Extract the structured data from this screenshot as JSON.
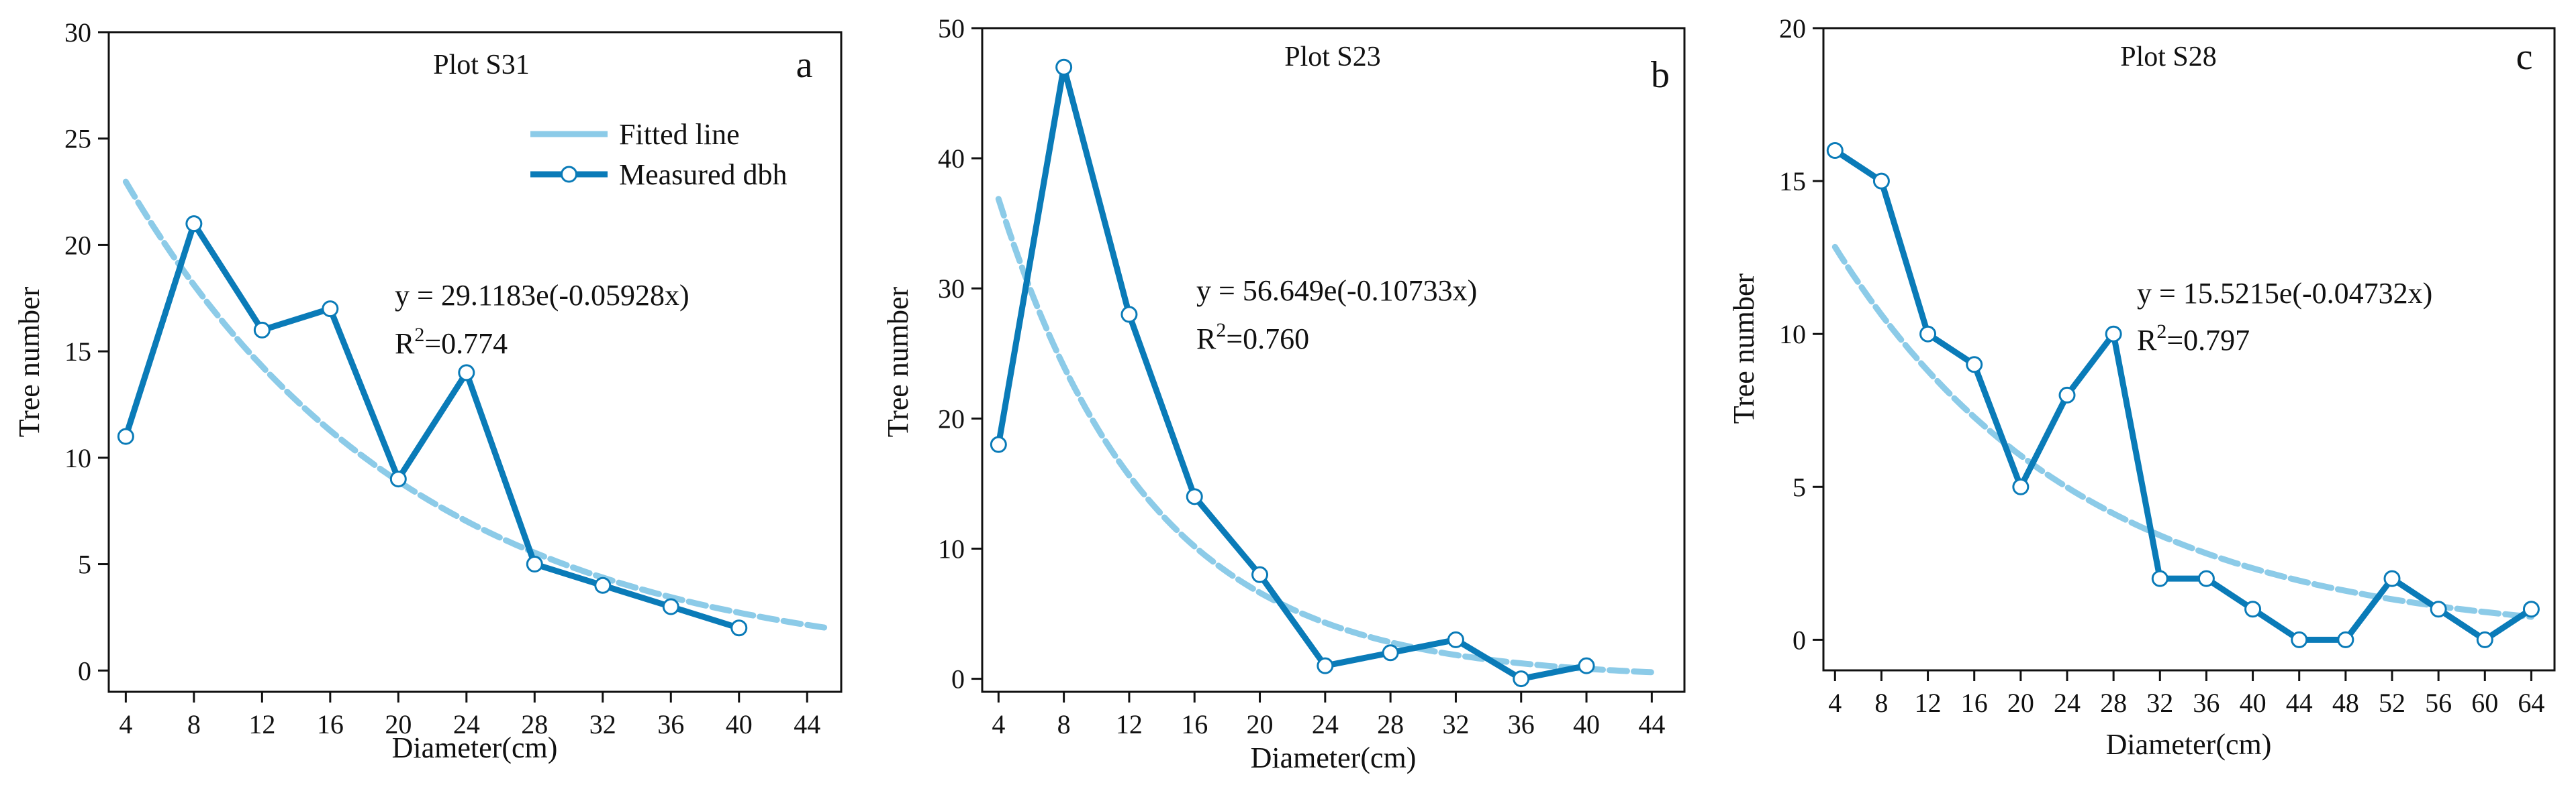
{
  "colors": {
    "measured": "#0a7bb8",
    "fitted": "#8ccbe8",
    "axis": "#111111",
    "marker_fill": "#ffffff"
  },
  "legend": {
    "fitted_label": "Fitted line",
    "measured_label": "Measured dbh"
  },
  "chart_data": [
    {
      "type": "line",
      "panel_letter": "a",
      "title": "Plot S31",
      "xlabel": "Diameter(cm)",
      "ylabel": "Tree number",
      "xlim": [
        3,
        46
      ],
      "ylim": [
        -1,
        30
      ],
      "xticks": [
        4,
        8,
        12,
        16,
        20,
        24,
        28,
        32,
        36,
        40,
        44
      ],
      "yticks": [
        0,
        5,
        10,
        15,
        20,
        25,
        30
      ],
      "equation": "y = 29.1183e(-0.05928x)",
      "r2_prefix": "R",
      "r2_sup": "2",
      "r2_value": "=0.774",
      "fit": {
        "a": 29.1183,
        "b": -0.05928,
        "x_start": 4,
        "x_end": 45
      },
      "series": [
        {
          "name": "Measured dbh",
          "x": [
            4,
            8,
            12,
            16,
            20,
            24,
            28,
            32,
            36,
            40
          ],
          "values": [
            11,
            21,
            16,
            17,
            9,
            14,
            5,
            4,
            3,
            2
          ]
        }
      ]
    },
    {
      "type": "line",
      "panel_letter": "b",
      "title": "Plot S23",
      "xlabel": "Diameter(cm)",
      "ylabel": "Tree number",
      "xlim": [
        3,
        46
      ],
      "ylim": [
        -1,
        50
      ],
      "xticks": [
        4,
        8,
        12,
        16,
        20,
        24,
        28,
        32,
        36,
        40,
        44
      ],
      "yticks": [
        0,
        10,
        20,
        30,
        40,
        50
      ],
      "equation": "y = 56.649e(-0.10733x)",
      "r2_prefix": "R",
      "r2_sup": "2",
      "r2_value": "=0.760",
      "fit": {
        "a": 56.649,
        "b": -0.10733,
        "x_start": 4,
        "x_end": 44
      },
      "series": [
        {
          "name": "Measured dbh",
          "x": [
            4,
            8,
            12,
            16,
            20,
            24,
            28,
            32,
            36,
            40
          ],
          "values": [
            18,
            47,
            28,
            14,
            8,
            1,
            2,
            3,
            0,
            1
          ]
        }
      ]
    },
    {
      "type": "line",
      "panel_letter": "c",
      "title": "Plot S28",
      "xlabel": "Diameter(cm)",
      "ylabel": "Tree number",
      "xlim": [
        3,
        66
      ],
      "ylim": [
        -1,
        20
      ],
      "xticks": [
        4,
        8,
        12,
        16,
        20,
        24,
        28,
        32,
        36,
        40,
        44,
        48,
        52,
        56,
        60,
        64
      ],
      "yticks": [
        0,
        5,
        10,
        15,
        20
      ],
      "equation": "y = 15.5215e(-0.04732x)",
      "r2_prefix": "R",
      "r2_sup": "2",
      "r2_value": "=0.797",
      "fit": {
        "a": 15.5215,
        "b": -0.04732,
        "x_start": 4,
        "x_end": 64
      },
      "series": [
        {
          "name": "Measured dbh",
          "x": [
            4,
            8,
            12,
            16,
            20,
            24,
            28,
            32,
            36,
            40,
            44,
            48,
            52,
            56,
            60,
            64
          ],
          "values": [
            16,
            15,
            10,
            9,
            5,
            8,
            10,
            2,
            2,
            1,
            0,
            0,
            2,
            1,
            0,
            1
          ]
        }
      ]
    }
  ]
}
